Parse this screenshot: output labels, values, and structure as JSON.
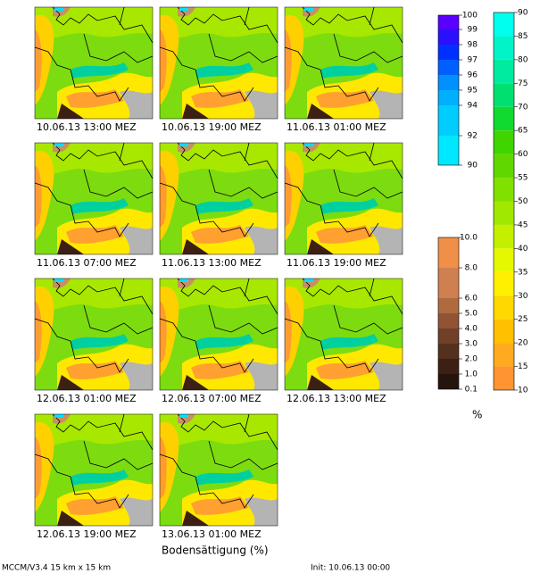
{
  "panels": [
    {
      "label": "10.06.13 13:00 MEZ"
    },
    {
      "label": "10.06.13 19:00 MEZ"
    },
    {
      "label": "11.06.13 01:00 MEZ"
    },
    {
      "label": "11.06.13 07:00 MEZ"
    },
    {
      "label": "11.06.13 13:00 MEZ"
    },
    {
      "label": "11.06.13 19:00 MEZ"
    },
    {
      "label": "12.06.13 01:00 MEZ"
    },
    {
      "label": "12.06.13 07:00 MEZ"
    },
    {
      "label": "12.06.13 13:00 MEZ"
    },
    {
      "label": "12.06.13 19:00 MEZ"
    },
    {
      "label": "13.06.13 01:00 MEZ"
    }
  ],
  "title": "Bodensättigung (%)",
  "unit": "%",
  "footer": {
    "model": "MCCM/V3.4 15 km x 15 km",
    "init": "Init: 10.06.13 00:00"
  },
  "colorbars": [
    {
      "ticks": [
        "100",
        "99",
        "98",
        "97",
        "96",
        "95",
        "94",
        "92",
        "90"
      ],
      "colors": [
        "#5a00ff",
        "#2a10ff",
        "#0030ff",
        "#0060ff",
        "#0090ff",
        "#00b0ff",
        "#00cdff",
        "#00e8ff"
      ]
    },
    {
      "ticks": [
        "90",
        "85",
        "80",
        "75",
        "70",
        "65",
        "60",
        "55",
        "50",
        "45",
        "40",
        "35",
        "30",
        "25",
        "20",
        "15",
        "10"
      ],
      "colors": [
        "#00ffee",
        "#00f4c8",
        "#00eaa0",
        "#00e070",
        "#10da30",
        "#40d400",
        "#60d800",
        "#80e000",
        "#a0e800",
        "#c4f000",
        "#e6f800",
        "#fff000",
        "#ffd800",
        "#ffc000",
        "#ffaa20",
        "#ff9430"
      ]
    },
    {
      "ticks": [
        "10.0",
        "8.0",
        "6.0",
        "5.0",
        "4.0",
        "3.0",
        "2.0",
        "1.0",
        "0.1"
      ],
      "colors": [
        "#f09048",
        "#d08050",
        "#b06a40",
        "#905434",
        "#704028",
        "#54301e",
        "#3c2014",
        "#24140c"
      ]
    }
  ]
}
